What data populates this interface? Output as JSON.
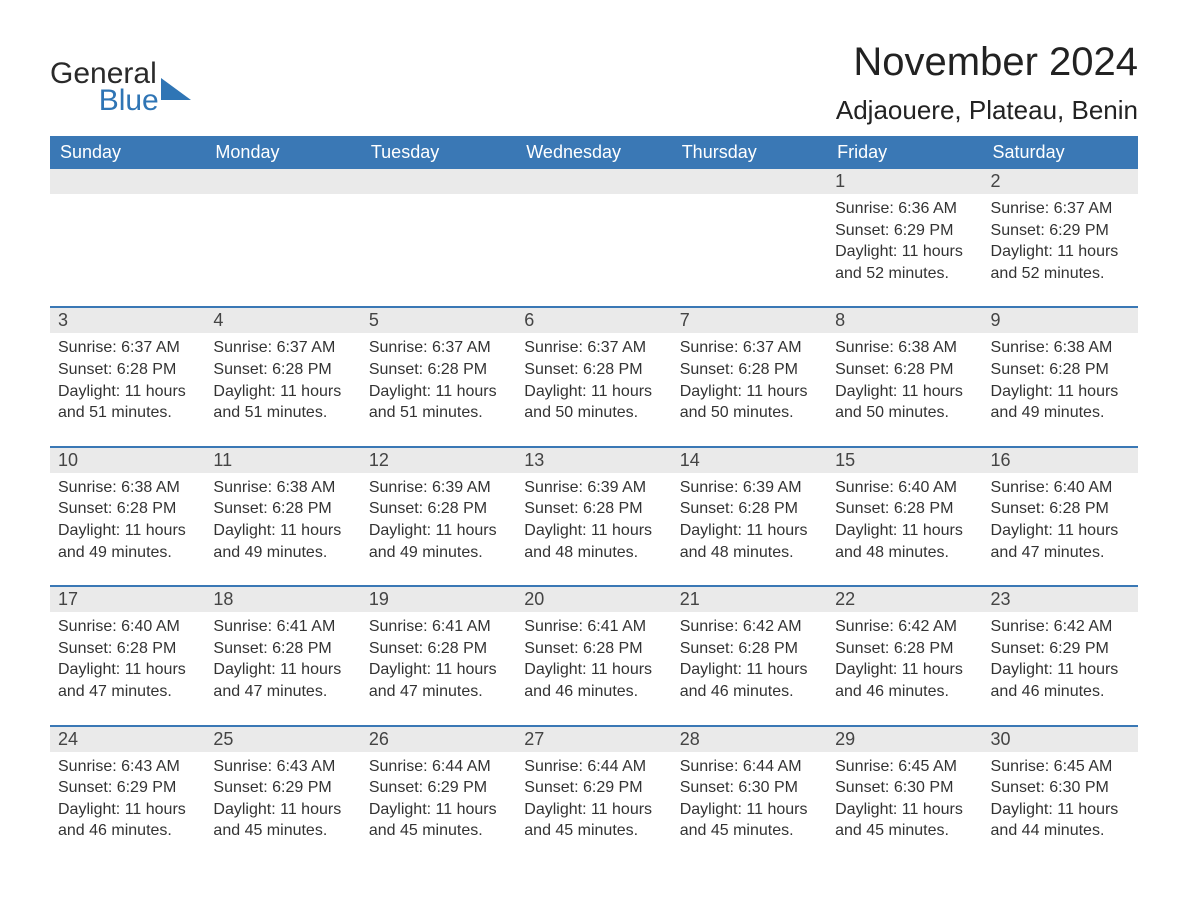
{
  "brand": {
    "word1": "General",
    "word2": "Blue",
    "shape_color": "#2f75b5"
  },
  "title": "November 2024",
  "location": "Adjaouere, Plateau, Benin",
  "colors": {
    "header_bg": "#3a78b5",
    "header_text": "#ffffff",
    "daynum_bg": "#eaeaea",
    "row_border": "#3a78b5",
    "body_text": "#333333",
    "page_bg": "#ffffff"
  },
  "fonts": {
    "title_size_pt": 40,
    "location_size_pt": 26,
    "header_size_pt": 18,
    "daynum_size_pt": 18,
    "body_size_pt": 16
  },
  "columns": [
    "Sunday",
    "Monday",
    "Tuesday",
    "Wednesday",
    "Thursday",
    "Friday",
    "Saturday"
  ],
  "weeks": [
    [
      null,
      null,
      null,
      null,
      null,
      {
        "n": "1",
        "sunrise": "Sunrise: 6:36 AM",
        "sunset": "Sunset: 6:29 PM",
        "daylight": "Daylight: 11 hours and 52 minutes."
      },
      {
        "n": "2",
        "sunrise": "Sunrise: 6:37 AM",
        "sunset": "Sunset: 6:29 PM",
        "daylight": "Daylight: 11 hours and 52 minutes."
      }
    ],
    [
      {
        "n": "3",
        "sunrise": "Sunrise: 6:37 AM",
        "sunset": "Sunset: 6:28 PM",
        "daylight": "Daylight: 11 hours and 51 minutes."
      },
      {
        "n": "4",
        "sunrise": "Sunrise: 6:37 AM",
        "sunset": "Sunset: 6:28 PM",
        "daylight": "Daylight: 11 hours and 51 minutes."
      },
      {
        "n": "5",
        "sunrise": "Sunrise: 6:37 AM",
        "sunset": "Sunset: 6:28 PM",
        "daylight": "Daylight: 11 hours and 51 minutes."
      },
      {
        "n": "6",
        "sunrise": "Sunrise: 6:37 AM",
        "sunset": "Sunset: 6:28 PM",
        "daylight": "Daylight: 11 hours and 50 minutes."
      },
      {
        "n": "7",
        "sunrise": "Sunrise: 6:37 AM",
        "sunset": "Sunset: 6:28 PM",
        "daylight": "Daylight: 11 hours and 50 minutes."
      },
      {
        "n": "8",
        "sunrise": "Sunrise: 6:38 AM",
        "sunset": "Sunset: 6:28 PM",
        "daylight": "Daylight: 11 hours and 50 minutes."
      },
      {
        "n": "9",
        "sunrise": "Sunrise: 6:38 AM",
        "sunset": "Sunset: 6:28 PM",
        "daylight": "Daylight: 11 hours and 49 minutes."
      }
    ],
    [
      {
        "n": "10",
        "sunrise": "Sunrise: 6:38 AM",
        "sunset": "Sunset: 6:28 PM",
        "daylight": "Daylight: 11 hours and 49 minutes."
      },
      {
        "n": "11",
        "sunrise": "Sunrise: 6:38 AM",
        "sunset": "Sunset: 6:28 PM",
        "daylight": "Daylight: 11 hours and 49 minutes."
      },
      {
        "n": "12",
        "sunrise": "Sunrise: 6:39 AM",
        "sunset": "Sunset: 6:28 PM",
        "daylight": "Daylight: 11 hours and 49 minutes."
      },
      {
        "n": "13",
        "sunrise": "Sunrise: 6:39 AM",
        "sunset": "Sunset: 6:28 PM",
        "daylight": "Daylight: 11 hours and 48 minutes."
      },
      {
        "n": "14",
        "sunrise": "Sunrise: 6:39 AM",
        "sunset": "Sunset: 6:28 PM",
        "daylight": "Daylight: 11 hours and 48 minutes."
      },
      {
        "n": "15",
        "sunrise": "Sunrise: 6:40 AM",
        "sunset": "Sunset: 6:28 PM",
        "daylight": "Daylight: 11 hours and 48 minutes."
      },
      {
        "n": "16",
        "sunrise": "Sunrise: 6:40 AM",
        "sunset": "Sunset: 6:28 PM",
        "daylight": "Daylight: 11 hours and 47 minutes."
      }
    ],
    [
      {
        "n": "17",
        "sunrise": "Sunrise: 6:40 AM",
        "sunset": "Sunset: 6:28 PM",
        "daylight": "Daylight: 11 hours and 47 minutes."
      },
      {
        "n": "18",
        "sunrise": "Sunrise: 6:41 AM",
        "sunset": "Sunset: 6:28 PM",
        "daylight": "Daylight: 11 hours and 47 minutes."
      },
      {
        "n": "19",
        "sunrise": "Sunrise: 6:41 AM",
        "sunset": "Sunset: 6:28 PM",
        "daylight": "Daylight: 11 hours and 47 minutes."
      },
      {
        "n": "20",
        "sunrise": "Sunrise: 6:41 AM",
        "sunset": "Sunset: 6:28 PM",
        "daylight": "Daylight: 11 hours and 46 minutes."
      },
      {
        "n": "21",
        "sunrise": "Sunrise: 6:42 AM",
        "sunset": "Sunset: 6:28 PM",
        "daylight": "Daylight: 11 hours and 46 minutes."
      },
      {
        "n": "22",
        "sunrise": "Sunrise: 6:42 AM",
        "sunset": "Sunset: 6:28 PM",
        "daylight": "Daylight: 11 hours and 46 minutes."
      },
      {
        "n": "23",
        "sunrise": "Sunrise: 6:42 AM",
        "sunset": "Sunset: 6:29 PM",
        "daylight": "Daylight: 11 hours and 46 minutes."
      }
    ],
    [
      {
        "n": "24",
        "sunrise": "Sunrise: 6:43 AM",
        "sunset": "Sunset: 6:29 PM",
        "daylight": "Daylight: 11 hours and 46 minutes."
      },
      {
        "n": "25",
        "sunrise": "Sunrise: 6:43 AM",
        "sunset": "Sunset: 6:29 PM",
        "daylight": "Daylight: 11 hours and 45 minutes."
      },
      {
        "n": "26",
        "sunrise": "Sunrise: 6:44 AM",
        "sunset": "Sunset: 6:29 PM",
        "daylight": "Daylight: 11 hours and 45 minutes."
      },
      {
        "n": "27",
        "sunrise": "Sunrise: 6:44 AM",
        "sunset": "Sunset: 6:29 PM",
        "daylight": "Daylight: 11 hours and 45 minutes."
      },
      {
        "n": "28",
        "sunrise": "Sunrise: 6:44 AM",
        "sunset": "Sunset: 6:30 PM",
        "daylight": "Daylight: 11 hours and 45 minutes."
      },
      {
        "n": "29",
        "sunrise": "Sunrise: 6:45 AM",
        "sunset": "Sunset: 6:30 PM",
        "daylight": "Daylight: 11 hours and 45 minutes."
      },
      {
        "n": "30",
        "sunrise": "Sunrise: 6:45 AM",
        "sunset": "Sunset: 6:30 PM",
        "daylight": "Daylight: 11 hours and 44 minutes."
      }
    ]
  ]
}
